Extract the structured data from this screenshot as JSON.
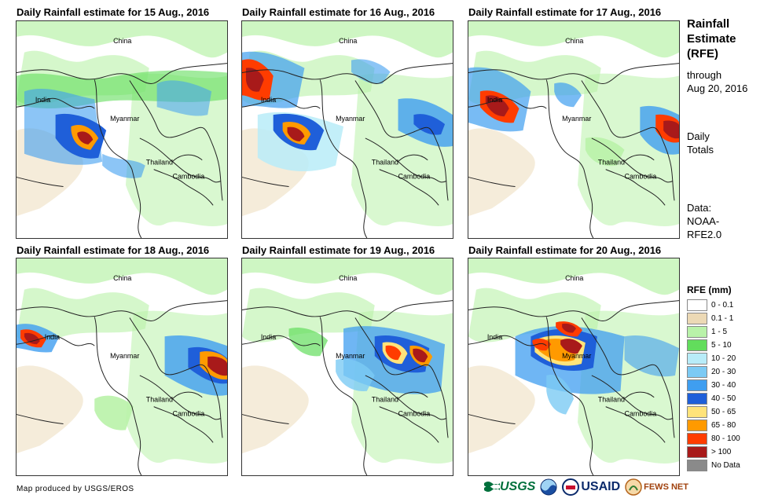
{
  "panels": [
    {
      "title": "Daily Rainfall estimate for 15 Aug., 2016"
    },
    {
      "title": "Daily Rainfall estimate for 16 Aug., 2016"
    },
    {
      "title": "Daily Rainfall estimate for 17 Aug., 2016"
    },
    {
      "title": "Daily Rainfall estimate for 18 Aug., 2016"
    },
    {
      "title": "Daily Rainfall estimate for 19 Aug., 2016"
    },
    {
      "title": "Daily Rainfall estimate for 20 Aug., 2016"
    }
  ],
  "map_labels": {
    "china": "China",
    "india": "India",
    "myanmar": "Myanmar",
    "thailand": "Thailand",
    "cambodia": "Cambodia"
  },
  "side": {
    "title_line1": "Rainfall",
    "title_line2": "Estimate",
    "title_line3": "(RFE)",
    "through": "through",
    "date": "Aug 20, 2016",
    "daily": "Daily",
    "totals": "Totals",
    "data_label": "Data:",
    "source_line1": "NOAA-",
    "source_line2": "RFE2.0"
  },
  "legend": {
    "title": "RFE (mm)",
    "items": [
      {
        "label": "0 - 0.1",
        "color": "#ffffff"
      },
      {
        "label": "0.1 - 1",
        "color": "#ecd9b5"
      },
      {
        "label": "1 - 5",
        "color": "#b9f2a9"
      },
      {
        "label": "5 - 10",
        "color": "#62dd5c"
      },
      {
        "label": "10 - 20",
        "color": "#b8ecf8"
      },
      {
        "label": "20 - 30",
        "color": "#7ccaf4"
      },
      {
        "label": "30 - 40",
        "color": "#3f9ef0"
      },
      {
        "label": "40 - 50",
        "color": "#1f5fd9"
      },
      {
        "label": "50 - 65",
        "color": "#ffe37a"
      },
      {
        "label": "65 - 80",
        "color": "#ff9a00"
      },
      {
        "label": "80 - 100",
        "color": "#ff3c00"
      },
      {
        "label": "> 100",
        "color": "#a81a1a"
      },
      {
        "label": "No Data",
        "color": "#8a8a8a"
      }
    ]
  },
  "footer": {
    "credit": "Map produced by USGS/EROS"
  },
  "logos": {
    "usgs": "USGS",
    "usaid": "USAID",
    "fewsnet": "FEWS NET"
  }
}
